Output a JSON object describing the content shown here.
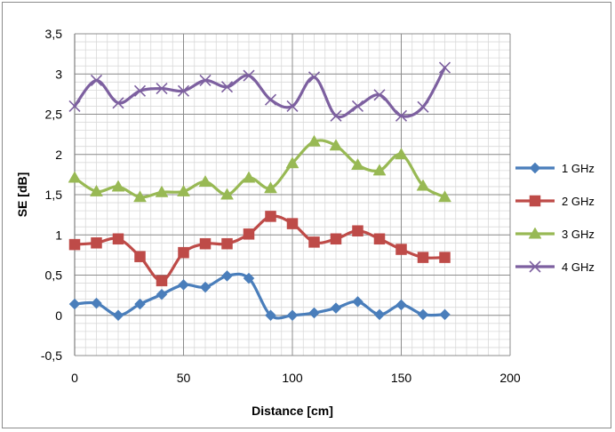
{
  "chart_data": {
    "type": "line",
    "title": "",
    "xlabel": "Distance [cm]",
    "ylabel": "SE [dB]",
    "xlim": [
      0,
      200
    ],
    "ylim": [
      -0.5,
      3.5
    ],
    "xticks": [
      "0",
      "50",
      "100",
      "150",
      "200"
    ],
    "yticks": [
      "-0,5",
      "0",
      "0,5",
      "1",
      "1,5",
      "2",
      "2,5",
      "3",
      "3,5"
    ],
    "grid": true,
    "legend_position": "right",
    "x": [
      0,
      10,
      20,
      30,
      40,
      50,
      60,
      70,
      80,
      90,
      100,
      110,
      120,
      130,
      140,
      150,
      160,
      170
    ],
    "series": [
      {
        "name": "1 GHz",
        "color": "#4a7ebb",
        "marker": "diamond",
        "values": [
          0.14,
          0.15,
          0.0,
          0.14,
          0.26,
          0.38,
          0.35,
          0.49,
          0.46,
          0.0,
          0.0,
          0.03,
          0.09,
          0.17,
          0.01,
          0.13,
          0.01,
          0.01
        ]
      },
      {
        "name": "2 GHz",
        "color": "#be4b48",
        "marker": "square",
        "values": [
          0.88,
          0.9,
          0.95,
          0.73,
          0.43,
          0.78,
          0.89,
          0.89,
          1.01,
          1.23,
          1.14,
          0.91,
          0.95,
          1.05,
          0.95,
          0.82,
          0.72,
          0.72
        ]
      },
      {
        "name": "3 GHz",
        "color": "#98b954",
        "marker": "triangle",
        "values": [
          1.71,
          1.54,
          1.6,
          1.47,
          1.53,
          1.54,
          1.66,
          1.5,
          1.71,
          1.58,
          1.89,
          2.16,
          2.11,
          1.87,
          1.8,
          2.0,
          1.61,
          1.47
        ]
      },
      {
        "name": "4 GHz",
        "color": "#7d60a0",
        "marker": "x",
        "values": [
          2.6,
          2.92,
          2.64,
          2.79,
          2.82,
          2.79,
          2.92,
          2.84,
          2.98,
          2.68,
          2.6,
          2.96,
          2.48,
          2.6,
          2.74,
          2.48,
          2.59,
          3.08
        ]
      }
    ]
  }
}
